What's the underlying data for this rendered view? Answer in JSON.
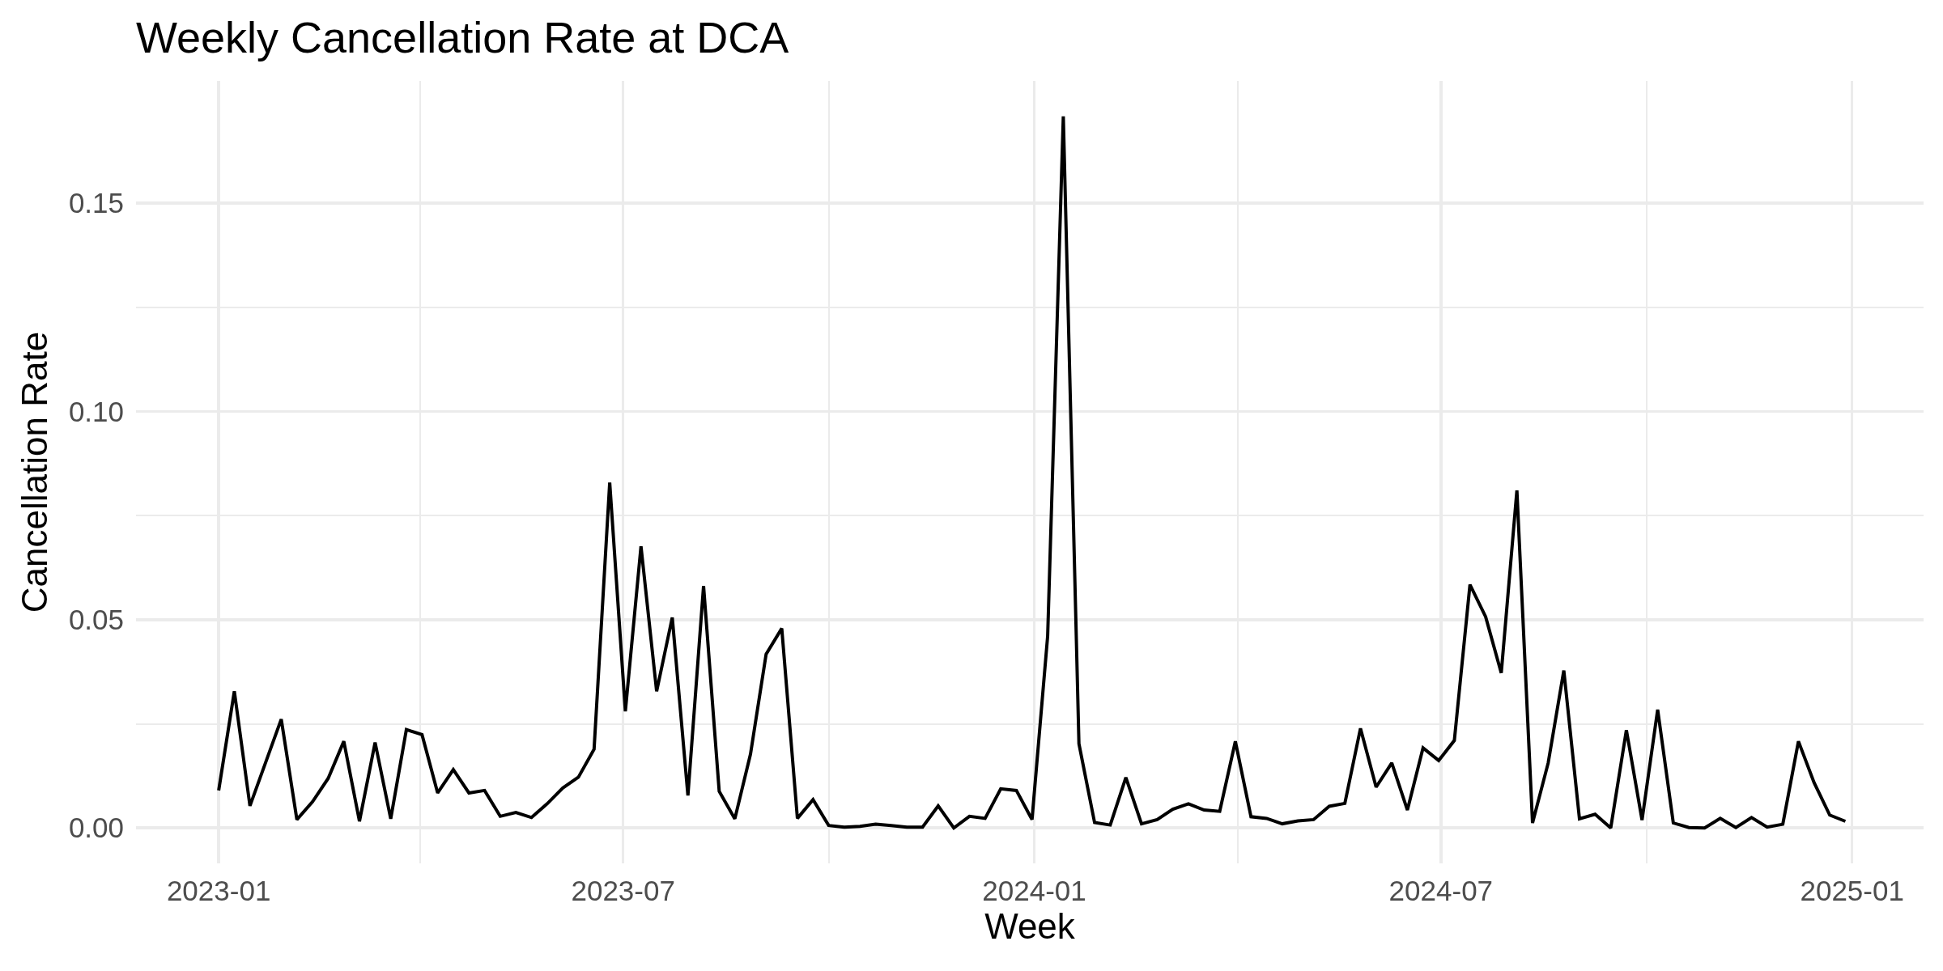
{
  "chart_data": {
    "type": "line",
    "title": "Weekly Cancellation Rate at DCA",
    "xlabel": "Week",
    "ylabel": "Cancellation Rate",
    "x": [
      "2023-01-01",
      "2023-01-08",
      "2023-01-15",
      "2023-01-22",
      "2023-01-29",
      "2023-02-05",
      "2023-02-12",
      "2023-02-19",
      "2023-02-26",
      "2023-03-05",
      "2023-03-12",
      "2023-03-19",
      "2023-03-26",
      "2023-04-02",
      "2023-04-09",
      "2023-04-16",
      "2023-04-23",
      "2023-04-30",
      "2023-05-07",
      "2023-05-14",
      "2023-05-21",
      "2023-05-28",
      "2023-06-04",
      "2023-06-11",
      "2023-06-18",
      "2023-06-25",
      "2023-07-02",
      "2023-07-09",
      "2023-07-16",
      "2023-07-23",
      "2023-07-30",
      "2023-08-06",
      "2023-08-13",
      "2023-08-20",
      "2023-08-27",
      "2023-09-03",
      "2023-09-10",
      "2023-09-17",
      "2023-09-24",
      "2023-10-01",
      "2023-10-08",
      "2023-10-15",
      "2023-10-22",
      "2023-10-29",
      "2023-11-05",
      "2023-11-12",
      "2023-11-19",
      "2023-11-26",
      "2023-12-03",
      "2023-12-10",
      "2023-12-17",
      "2023-12-24",
      "2023-12-31",
      "2024-01-07",
      "2024-01-14",
      "2024-01-21",
      "2024-01-28",
      "2024-02-04",
      "2024-02-11",
      "2024-02-18",
      "2024-02-25",
      "2024-03-03",
      "2024-03-10",
      "2024-03-17",
      "2024-03-24",
      "2024-03-31",
      "2024-04-07",
      "2024-04-14",
      "2024-04-21",
      "2024-04-28",
      "2024-05-05",
      "2024-05-12",
      "2024-05-19",
      "2024-05-26",
      "2024-06-02",
      "2024-06-09",
      "2024-06-16",
      "2024-06-23",
      "2024-06-30",
      "2024-07-07",
      "2024-07-14",
      "2024-07-21",
      "2024-07-28",
      "2024-08-04",
      "2024-08-11",
      "2024-08-18",
      "2024-08-25",
      "2024-09-01",
      "2024-09-08",
      "2024-09-15",
      "2024-09-22",
      "2024-09-29",
      "2024-10-06",
      "2024-10-13",
      "2024-10-20",
      "2024-10-27",
      "2024-11-03",
      "2024-11-10",
      "2024-11-17",
      "2024-11-24",
      "2024-12-01",
      "2024-12-08",
      "2024-12-15",
      "2024-12-22",
      "2024-12-29"
    ],
    "values": [
      0.009,
      0.0328,
      0.0053,
      0.0157,
      0.0261,
      0.002,
      0.0063,
      0.0119,
      0.0208,
      0.0016,
      0.0205,
      0.0022,
      0.0236,
      0.0224,
      0.0084,
      0.014,
      0.0084,
      0.009,
      0.0028,
      0.0037,
      0.0025,
      0.0058,
      0.0096,
      0.0122,
      0.0189,
      0.0829,
      0.028,
      0.0676,
      0.0328,
      0.0505,
      0.0078,
      0.0581,
      0.0088,
      0.0022,
      0.0177,
      0.0417,
      0.0479,
      0.0023,
      0.0068,
      0.0006,
      0.0002,
      0.0004,
      0.0009,
      0.0006,
      0.0002,
      0.0002,
      0.0053,
      0,
      0.0028,
      0.0023,
      0.0094,
      0.009,
      0.002,
      0.0461,
      0.1708,
      0.0202,
      0.0013,
      0.0007,
      0.0121,
      0.001,
      0.002,
      0.0045,
      0.0058,
      0.0043,
      0.004,
      0.0208,
      0.0027,
      0.0023,
      0.001,
      0.0017,
      0.002,
      0.0052,
      0.0059,
      0.0239,
      0.0098,
      0.0156,
      0.0043,
      0.0192,
      0.0162,
      0.021,
      0.0584,
      0.0507,
      0.0372,
      0.081,
      0.0012,
      0.0156,
      0.0378,
      0.0022,
      0.0033,
      0,
      0.0235,
      0.0019,
      0.0284,
      0.0012,
      0.0001,
      0,
      0.0023,
      0.0001,
      0.0025,
      0.0002,
      0.0009,
      0.0208,
      0.0109,
      0.0031,
      0.0016
    ],
    "color": "#000000",
    "xlim": [
      "2022-11-25",
      "2025-02-02"
    ],
    "xticks": [
      {
        "value": "2023-01-01",
        "label": "2023-01"
      },
      {
        "value": "2023-04-01",
        "label": null
      },
      {
        "value": "2023-07-01",
        "label": "2023-07"
      },
      {
        "value": "2023-10-01",
        "label": null
      },
      {
        "value": "2024-01-01",
        "label": "2024-01"
      },
      {
        "value": "2024-04-01",
        "label": null
      },
      {
        "value": "2024-07-01",
        "label": "2024-07"
      },
      {
        "value": "2024-10-01",
        "label": null
      },
      {
        "value": "2025-01-01",
        "label": "2025-01"
      }
    ],
    "ylim": [
      -0.0085,
      0.1793
    ],
    "yticks": [
      {
        "value": 0,
        "label": "0.00"
      },
      {
        "value": 0.025,
        "label": null
      },
      0.05,
      {
        "value": 0.075,
        "label": null
      },
      {
        "value": 0.1,
        "label": "0.10"
      },
      {
        "value": 0.125,
        "label": null
      },
      0.15
    ],
    "grid": true
  }
}
